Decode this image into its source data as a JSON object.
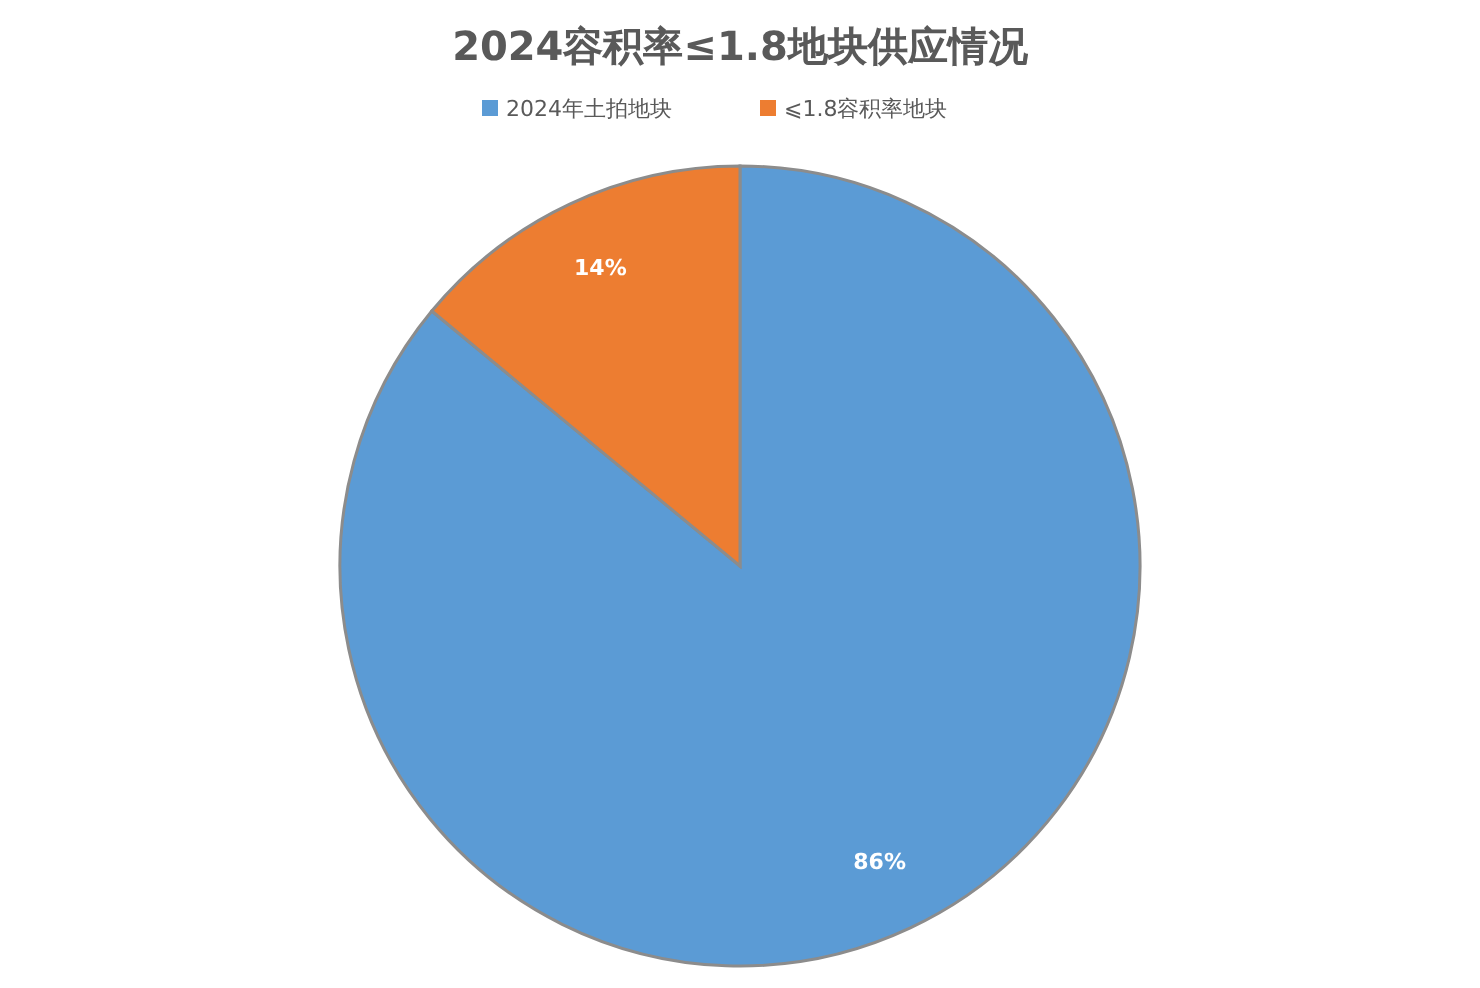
{
  "chart_data": {
    "type": "pie",
    "title": "2024容积率≤1.8地块供应情况",
    "categories": [
      "2024年土拍地块",
      "⩽1.8容积率地块"
    ],
    "values": [
      86,
      14
    ],
    "colors": [
      "#5b9bd5",
      "#ed7d31"
    ],
    "value_labels": [
      "86%",
      "14%"
    ],
    "legend": "top"
  }
}
